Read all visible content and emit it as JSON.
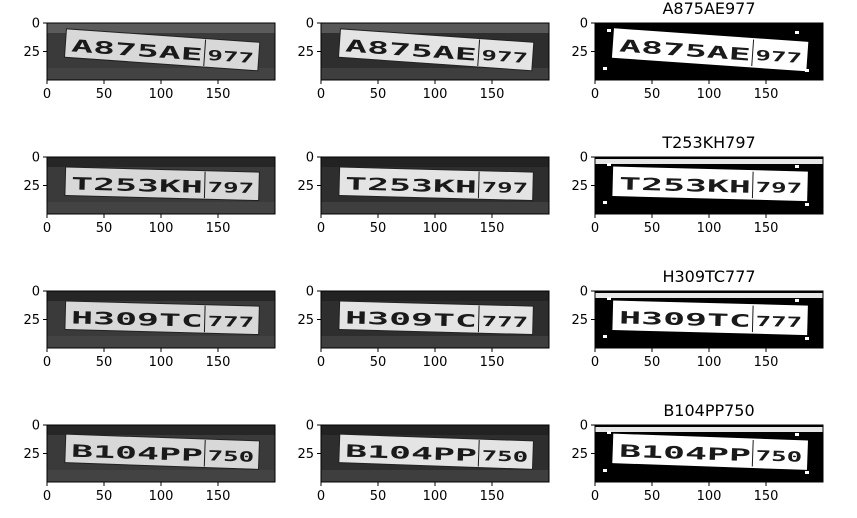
{
  "figure": {
    "rows": [
      {
        "plate": "A875AE977",
        "panels": [
          {
            "variant": "grayscale",
            "title": ""
          },
          {
            "variant": "enhanced",
            "title": ""
          },
          {
            "variant": "binary",
            "title": "A875AE977"
          }
        ]
      },
      {
        "plate": "T253KH797",
        "panels": [
          {
            "variant": "grayscale",
            "title": ""
          },
          {
            "variant": "enhanced",
            "title": ""
          },
          {
            "variant": "binary",
            "title": "T253KH797"
          }
        ]
      },
      {
        "plate": "H309TC777",
        "panels": [
          {
            "variant": "grayscale",
            "title": ""
          },
          {
            "variant": "enhanced",
            "title": ""
          },
          {
            "variant": "binary",
            "title": "H309TC777"
          }
        ]
      },
      {
        "plate": "B104PP750",
        "panels": [
          {
            "variant": "grayscale",
            "title": ""
          },
          {
            "variant": "enhanced",
            "title": ""
          },
          {
            "variant": "binary",
            "title": "B104PP750"
          }
        ]
      }
    ],
    "x_ticks": [
      0,
      50,
      100,
      150
    ],
    "y_ticks": [
      0,
      25
    ],
    "x_tick_labels": [
      "0",
      "50",
      "100",
      "150"
    ],
    "y_tick_labels": [
      "0",
      "25"
    ],
    "x_range": [
      0,
      200
    ],
    "y_range": [
      50,
      0
    ],
    "colors": {
      "background": "#ffffff",
      "grayscale_dark": "#3a3a3a",
      "grayscale_plate": "#d8d8d8",
      "binary_bg": "#000000",
      "binary_fg": "#ffffff",
      "plate_text": "#1a1a1a"
    }
  }
}
